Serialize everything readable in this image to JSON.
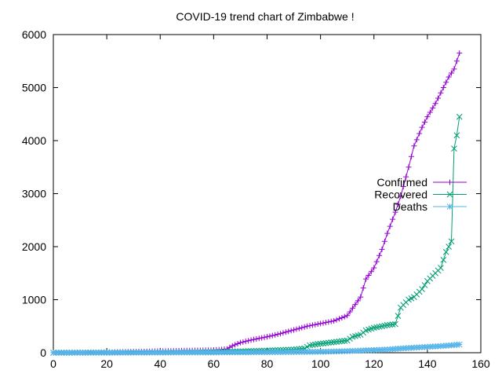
{
  "chart_data": {
    "type": "line",
    "title": "COVID-19 trend chart of Zimbabwe !",
    "xlim": [
      0,
      160
    ],
    "ylim": [
      0,
      6000
    ],
    "x_ticks": [
      0,
      20,
      40,
      60,
      80,
      100,
      120,
      140,
      160
    ],
    "y_ticks": [
      0,
      1000,
      2000,
      3000,
      4000,
      5000,
      6000
    ],
    "grid": false,
    "legend_position": "right",
    "series": [
      {
        "name": "Confirmed",
        "color": "#9400d3",
        "marker": "plus",
        "x": [
          0,
          10,
          20,
          30,
          40,
          50,
          60,
          65,
          67,
          70,
          75,
          80,
          85,
          90,
          95,
          100,
          105,
          110,
          115,
          117,
          120,
          123,
          125,
          128,
          130,
          133,
          135,
          138,
          140,
          143,
          145,
          148,
          150,
          152
        ],
        "y": [
          2,
          5,
          10,
          20,
          30,
          40,
          50,
          70,
          130,
          190,
          250,
          300,
          360,
          430,
          500,
          550,
          600,
          700,
          1050,
          1390,
          1600,
          1950,
          2250,
          2650,
          2950,
          3500,
          3900,
          4250,
          4450,
          4700,
          4900,
          5200,
          5350,
          5650
        ]
      },
      {
        "name": "Recovered",
        "color": "#009e73",
        "marker": "cross",
        "x": [
          0,
          20,
          40,
          60,
          70,
          80,
          90,
          94,
          96,
          100,
          105,
          110,
          112,
          115,
          117,
          120,
          125,
          128,
          130,
          133,
          135,
          138,
          140,
          143,
          145,
          147,
          149,
          150,
          151,
          152
        ],
        "y": [
          0,
          2,
          5,
          15,
          25,
          40,
          60,
          80,
          140,
          170,
          200,
          230,
          300,
          340,
          420,
          470,
          520,
          540,
          850,
          1000,
          1050,
          1200,
          1350,
          1500,
          1600,
          1900,
          2100,
          3850,
          4100,
          4450
        ]
      },
      {
        "name": "Deaths",
        "color": "#56b4e9",
        "marker": "star",
        "x": [
          0,
          20,
          40,
          60,
          80,
          100,
          110,
          120,
          125,
          130,
          135,
          140,
          145,
          150,
          152
        ],
        "y": [
          0,
          1,
          4,
          6,
          9,
          18,
          30,
          50,
          60,
          80,
          95,
          110,
          125,
          145,
          155
        ]
      }
    ]
  }
}
